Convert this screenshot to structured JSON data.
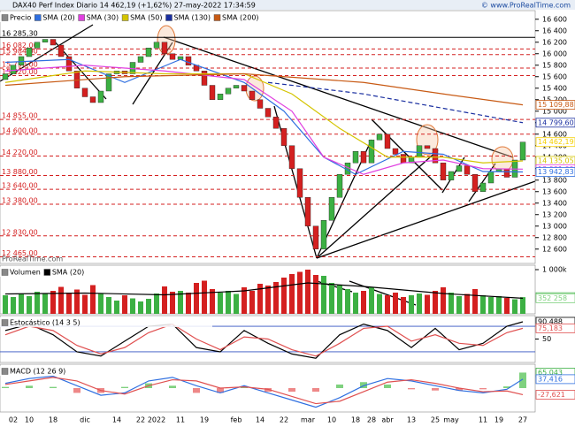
{
  "header": {
    "title": "DAX40 Perf Index Diario 14 462,19 (+1,62%) 27-may-2022 17:34:59",
    "site": "© www.ProRealTime.com"
  },
  "chart_data": [
    {
      "type": "candlestick",
      "watermark": "ProRealTime.com",
      "ylim": [
        12350,
        16750
      ],
      "yticks": [
        {
          "value": 16600,
          "label": "16 600"
        },
        {
          "value": 16400,
          "label": "16 400"
        },
        {
          "value": 16200,
          "label": "16 200"
        },
        {
          "value": 16000,
          "label": "16 000"
        },
        {
          "value": 15800,
          "label": "15 800"
        },
        {
          "value": 15600,
          "label": "15 600"
        },
        {
          "value": 15400,
          "label": "15 400"
        },
        {
          "value": 15200,
          "label": "15 200"
        },
        {
          "value": 15000,
          "label": "15 000"
        },
        {
          "value": 14800,
          "label": "14 800"
        },
        {
          "value": 14600,
          "label": "14 600"
        },
        {
          "value": 14400,
          "label": "14 400"
        },
        {
          "value": 14200,
          "label": "14 200"
        },
        {
          "value": 14000,
          "label": "14 000"
        },
        {
          "value": 13800,
          "label": "13 800"
        },
        {
          "value": 13600,
          "label": "13 600"
        },
        {
          "value": 13400,
          "label": "13 400"
        },
        {
          "value": 13200,
          "label": "13 200"
        },
        {
          "value": 13000,
          "label": "13 000"
        },
        {
          "value": 12800,
          "label": "12 800"
        },
        {
          "value": 12600,
          "label": "12 600"
        }
      ],
      "categories": [
        null,
        "02",
        null,
        "10",
        null,
        null,
        "18",
        null,
        null,
        null,
        "dic",
        null,
        null,
        null,
        "14",
        null,
        null,
        "22",
        null,
        "2022",
        null,
        null,
        "11",
        null,
        null,
        "19",
        null,
        null,
        null,
        "feb",
        null,
        null,
        "14",
        null,
        null,
        "22",
        null,
        null,
        "mar",
        null,
        null,
        "10",
        null,
        null,
        "18",
        null,
        "28",
        null,
        "abr",
        null,
        null,
        "13",
        null,
        null,
        "25",
        null,
        "may",
        null,
        null,
        null,
        "11",
        null,
        "19",
        null,
        null,
        "27"
      ],
      "open": [
        15550,
        15650,
        15800,
        15950,
        16100,
        16200,
        16250,
        16150,
        15950,
        15700,
        15400,
        15250,
        15150,
        15350,
        15650,
        15700,
        15650,
        15850,
        15950,
        16100,
        16200,
        16000,
        15900,
        15950,
        15800,
        15700,
        15450,
        15200,
        15300,
        15400,
        15450,
        15350,
        15200,
        15050,
        14900,
        14700,
        14400,
        14000,
        13500,
        13000,
        12600,
        13100,
        13500,
        13900,
        14100,
        14300,
        14100,
        14500,
        14600,
        14350,
        14250,
        14100,
        14200,
        14400,
        14350,
        14100,
        13800,
        13950,
        14050,
        13900,
        13600,
        13750,
        13950,
        14000,
        13850,
        14150
      ],
      "close": [
        15650,
        15800,
        15950,
        16100,
        16200,
        16250,
        16150,
        15950,
        15700,
        15400,
        15250,
        15150,
        15350,
        15650,
        15700,
        15650,
        15850,
        15950,
        16100,
        16200,
        16000,
        15900,
        15950,
        15800,
        15700,
        15450,
        15200,
        15300,
        15400,
        15450,
        15350,
        15200,
        15050,
        14900,
        14700,
        14400,
        14000,
        13500,
        13000,
        12600,
        13100,
        13500,
        13900,
        14100,
        14300,
        14100,
        14500,
        14600,
        14350,
        14250,
        14100,
        14200,
        14400,
        14350,
        14100,
        13800,
        13950,
        14050,
        13900,
        13600,
        13750,
        13950,
        14000,
        13850,
        14150,
        14462.19
      ],
      "up_color": "#3cb043",
      "down_color": "#d42020",
      "legend_title": "Precio",
      "series": [
        {
          "name": "SMA (20)",
          "color": "#2f6fe0",
          "x": [
            0,
            8,
            15,
            22,
            30,
            35,
            40,
            44,
            50,
            55,
            60,
            65
          ],
          "values": [
            15850,
            15900,
            15500,
            15900,
            15500,
            15000,
            14200,
            13900,
            14300,
            14250,
            13950,
            13942.83
          ]
        },
        {
          "name": "SMA (30)",
          "color": "#e040e0",
          "x": [
            0,
            10,
            20,
            30,
            36,
            40,
            45,
            50,
            55,
            60,
            65
          ],
          "values": [
            15700,
            15800,
            15700,
            15550,
            15000,
            14200,
            13900,
            14100,
            14150,
            14000,
            13991.09
          ]
        },
        {
          "name": "SMA (50)",
          "color": "#d4c400",
          "x": [
            0,
            10,
            20,
            30,
            36,
            42,
            48,
            55,
            60,
            65
          ],
          "values": [
            15500,
            15700,
            15650,
            15650,
            15300,
            14700,
            14200,
            14200,
            14100,
            14135.05
          ]
        },
        {
          "name": "SMA (130)",
          "color": "#1a2fa0",
          "dashed": true,
          "x": [
            33,
            45,
            55,
            65
          ],
          "values": [
            15500,
            15300,
            15050,
            14799.6
          ]
        },
        {
          "name": "SMA (200)",
          "color": "#c85a14",
          "x": [
            0,
            15,
            30,
            45,
            55,
            65
          ],
          "values": [
            15450,
            15600,
            15650,
            15500,
            15300,
            15109.88
          ]
        }
      ],
      "levels": [
        {
          "value": 16285.3,
          "label": "16 285,30",
          "color": "#000"
        },
        {
          "value": 16082,
          "label": "16 082,00",
          "color": "#d42020"
        },
        {
          "value": 15984,
          "label": "15 984,00",
          "color": "#d42020"
        },
        {
          "value": 15750,
          "label": "15 750,00",
          "color": "#d42020"
        },
        {
          "value": 15620,
          "label": "15 620,00",
          "color": "#d42020"
        },
        {
          "value": 14855,
          "label": "14 855,00",
          "color": "#d42020"
        },
        {
          "value": 14600,
          "label": "14 600,00",
          "color": "#d42020"
        },
        {
          "value": 14220,
          "label": "14 220,00",
          "color": "#d42020"
        },
        {
          "value": 13880,
          "label": "13 880,00",
          "color": "#d42020"
        },
        {
          "value": 13640,
          "label": "13 640,00",
          "color": "#d42020"
        },
        {
          "value": 13380,
          "label": "13 380,00",
          "color": "#d42020"
        },
        {
          "value": 12830,
          "label": "12 830,00",
          "color": "#d42020"
        },
        {
          "value": 12465,
          "label": "12 465,00",
          "color": "#d42020"
        }
      ],
      "tags": [
        {
          "value": 15109.88,
          "label": "15 109,88",
          "color": "#c85a14"
        },
        {
          "value": 14799.6,
          "label": "14 799,60",
          "color": "#1a2fa0"
        },
        {
          "value": 14462.19,
          "label": "14 462,19",
          "color": "#f5d000"
        },
        {
          "value": 14135.05,
          "label": "14 135,05",
          "color": "#d4c400"
        },
        {
          "value": 13991.09,
          "label": "13 991,09",
          "color": "#e040e0"
        },
        {
          "value": 13942.83,
          "label": "13 942,83",
          "color": "#2f6fe0"
        }
      ]
    },
    {
      "type": "volume",
      "legend_title": "Volumen",
      "ylim": [
        0,
        1100000
      ],
      "yticks": [
        {
          "value": 1000000,
          "label": "1 000k"
        }
      ],
      "values": [
        420000,
        380000,
        450000,
        400000,
        500000,
        470000,
        520000,
        610000,
        480000,
        550000,
        430000,
        650000,
        450000,
        380000,
        300000,
        420000,
        350000,
        280000,
        340000,
        460000,
        620000,
        500000,
        520000,
        480000,
        700000,
        750000,
        560000,
        480000,
        520000,
        450000,
        600000,
        520000,
        680000,
        640000,
        720000,
        820000,
        900000,
        950000,
        1000000,
        880000,
        860000,
        700000,
        650000,
        560000,
        480000,
        520000,
        600000,
        450000,
        420000,
        480000,
        380000,
        420000,
        460000,
        430000,
        520000,
        600000,
        480000,
        400000,
        450000,
        560000,
        420000,
        380000,
        400000,
        360000,
        330000,
        377053
      ],
      "series": [
        {
          "name": "SMA (20)",
          "color": "#000",
          "x": [
            0,
            10,
            20,
            30,
            38,
            45,
            55,
            65
          ],
          "values": [
            450000,
            470000,
            430000,
            520000,
            700000,
            620000,
            460000,
            352258
          ]
        }
      ],
      "tags": [
        {
          "value": 377053,
          "label": "377 053",
          "color": "#3cb043"
        },
        {
          "value": 352258,
          "label": "352 258",
          "color": "#7fd17f"
        }
      ]
    },
    {
      "type": "stochastic",
      "legend_title": "Estocástico (14 3 5)",
      "ylim": [
        -5,
        105
      ],
      "yticks": [
        50
      ],
      "bands": [
        80,
        20
      ],
      "series": [
        {
          "name": "%K",
          "color": "#000",
          "x": [
            0,
            3,
            6,
            9,
            12,
            15,
            18,
            21,
            24,
            27,
            30,
            33,
            36,
            39,
            42,
            45,
            48,
            51,
            54,
            57,
            60,
            63,
            65
          ],
          "values": [
            70,
            85,
            60,
            20,
            10,
            45,
            80,
            85,
            30,
            20,
            70,
            40,
            15,
            5,
            60,
            85,
            70,
            30,
            75,
            25,
            40,
            80,
            90.488
          ]
        },
        {
          "name": "%D",
          "color": "#e05050",
          "x": [
            0,
            3,
            6,
            9,
            12,
            15,
            18,
            21,
            24,
            27,
            30,
            33,
            36,
            39,
            42,
            45,
            48,
            51,
            54,
            57,
            60,
            63,
            65
          ],
          "values": [
            60,
            80,
            70,
            35,
            15,
            30,
            65,
            85,
            50,
            25,
            55,
            50,
            25,
            10,
            40,
            75,
            80,
            45,
            60,
            40,
            35,
            65,
            75.183
          ]
        }
      ],
      "tags": [
        {
          "value": 90.488,
          "label": "90,488",
          "color": "#000"
        },
        {
          "value": 75.183,
          "label": "75,183",
          "color": "#e05050"
        }
      ]
    },
    {
      "type": "macd",
      "legend_title": "MACD (12 26 9)",
      "ylim": [
        -100,
        100
      ],
      "x": [
        0,
        3,
        6,
        9,
        12,
        15,
        18,
        21,
        24,
        27,
        30,
        33,
        36,
        39,
        42,
        45,
        48,
        51,
        54,
        57,
        60,
        63,
        65
      ],
      "histogram": [
        5,
        10,
        5,
        -20,
        -20,
        5,
        20,
        10,
        -20,
        -20,
        5,
        -15,
        -15,
        -15,
        15,
        25,
        15,
        -5,
        -10,
        -10,
        -5,
        7,
        65.043
      ],
      "series": [
        {
          "name": "MACD",
          "color": "#2f6fe0",
          "values": [
            20,
            40,
            50,
            10,
            -30,
            -20,
            30,
            45,
            10,
            -20,
            10,
            -20,
            -50,
            -80,
            -40,
            10,
            40,
            30,
            10,
            -10,
            -20,
            -5,
            37.416
          ]
        },
        {
          "name": "Signal",
          "color": "#e05050",
          "values": [
            15,
            30,
            45,
            30,
            -10,
            -25,
            10,
            35,
            30,
            0,
            5,
            -5,
            -35,
            -65,
            -55,
            -15,
            25,
            35,
            20,
            0,
            -15,
            -12,
            -27.621
          ]
        }
      ],
      "tags": [
        {
          "value": 65.043,
          "label": "65,043",
          "color": "#3cb043"
        },
        {
          "value": 37.416,
          "label": "37,416",
          "color": "#2f6fe0"
        },
        {
          "value": -27.621,
          "label": "-27,621",
          "color": "#e05050"
        }
      ]
    }
  ]
}
